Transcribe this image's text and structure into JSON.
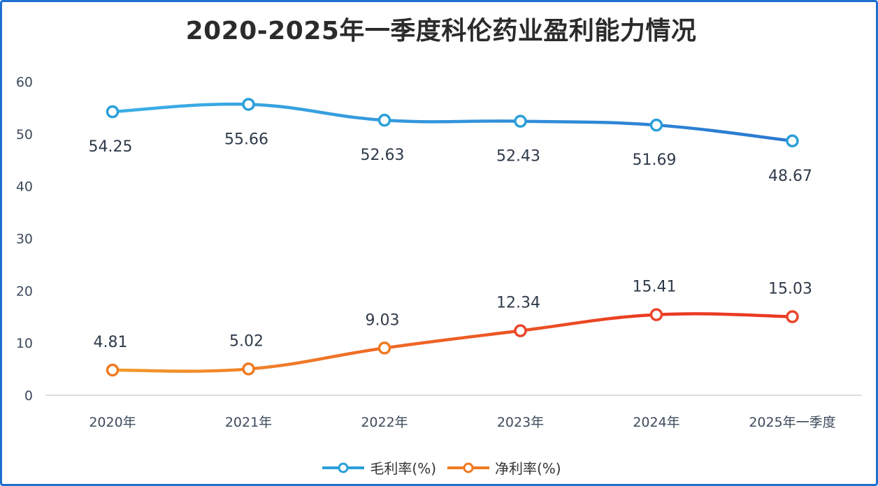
{
  "chart_data": {
    "type": "line",
    "title": "2020-2025年一季度科伦药业盈利能力情况",
    "categories": [
      "2020年",
      "2021年",
      "2022年",
      "2023年",
      "2024年",
      "2025年一季度"
    ],
    "series": [
      {
        "name": "毛利率(%)",
        "values": [
          54.25,
          55.66,
          52.63,
          52.43,
          51.69,
          48.67
        ],
        "labels": [
          "54.25",
          "55.66",
          "52.63",
          "52.43",
          "51.69",
          "48.67"
        ],
        "color": "#2a9fd8",
        "label_position": "below"
      },
      {
        "name": "净利率(%)",
        "values": [
          4.81,
          5.02,
          9.03,
          12.34,
          15.41,
          15.03
        ],
        "labels": [
          "4.81",
          "5.02",
          "9.03",
          "12.34",
          "15.41",
          "15.03"
        ],
        "color": "#f07a20",
        "label_position": "above"
      }
    ],
    "ylim": [
      0,
      60
    ],
    "yticks": [
      "0",
      "10",
      "20",
      "30",
      "40",
      "50",
      "60"
    ],
    "grid": false,
    "legend": "bottom",
    "xlabel": "",
    "ylabel": ""
  }
}
